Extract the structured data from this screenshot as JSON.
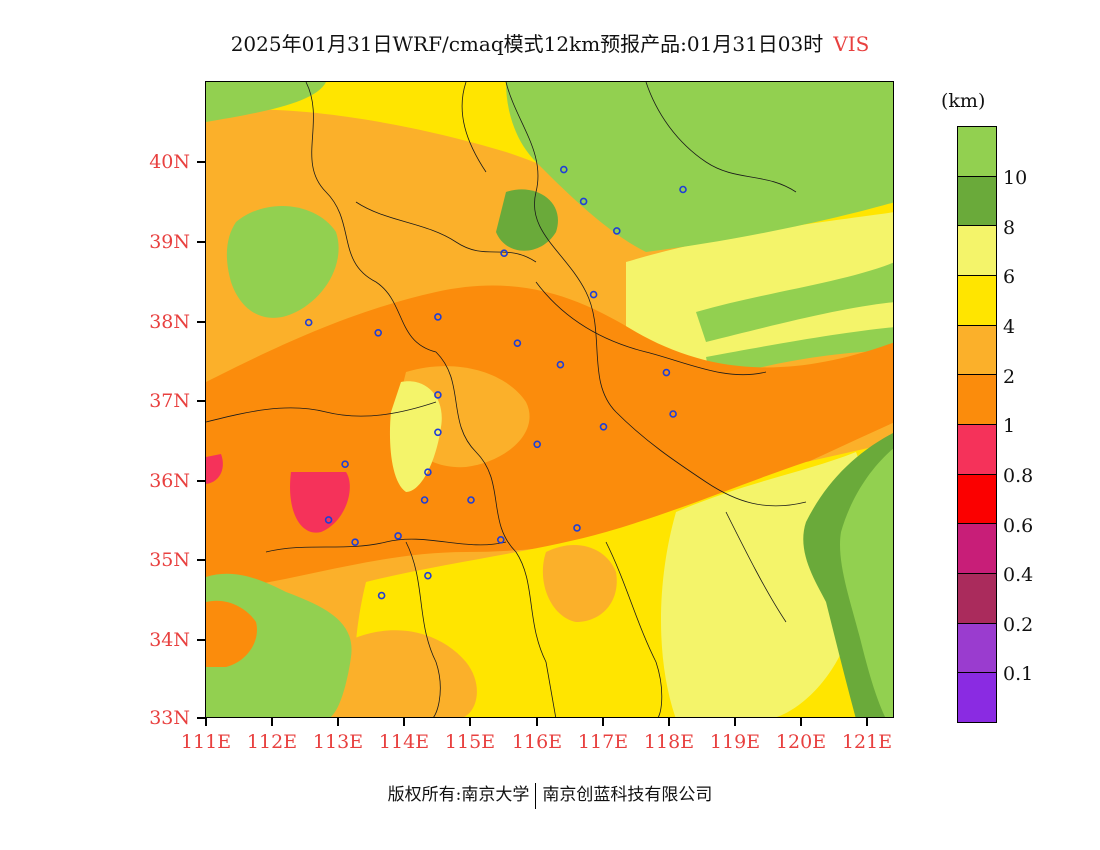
{
  "title": {
    "main": "2025年01月31日WRF/cmaq模式12km预报产品:01月31日03时",
    "variable": "VIS"
  },
  "axes": {
    "y_ticks": [
      "40N",
      "39N",
      "38N",
      "37N",
      "36N",
      "35N",
      "34N",
      "33N"
    ],
    "x_ticks": [
      "111E",
      "112E",
      "113E",
      "114E",
      "115E",
      "116E",
      "117E",
      "118E",
      "119E",
      "120E",
      "121E"
    ]
  },
  "legend": {
    "unit": "(km)",
    "labels": [
      "10",
      "8",
      "6",
      "4",
      "2",
      "1",
      "0.8",
      "0.6",
      "0.4",
      "0.2",
      "0.1"
    ],
    "colors": [
      "#92d050",
      "#6aaa3a",
      "#f4f46a",
      "#ffe500",
      "#fbb02a",
      "#fb8c0c",
      "#f5325a",
      "#fb0000",
      "#c81e78",
      "#aa2b5c",
      "#9a3ccf",
      "#8a2be2"
    ]
  },
  "footer": {
    "left": "版权所有:南京大学",
    "right": "南京创蓝科技有限公司"
  },
  "map": {
    "lon_range": [
      111,
      121.4
    ],
    "lat_range": [
      33,
      41
    ],
    "stations": [
      [
        116.4,
        39.9
      ],
      [
        116.7,
        39.5
      ],
      [
        118.2,
        39.65
      ],
      [
        117.2,
        39.13
      ],
      [
        115.5,
        38.85
      ],
      [
        116.85,
        38.33
      ],
      [
        114.5,
        38.05
      ],
      [
        113.6,
        37.85
      ],
      [
        112.55,
        37.98
      ],
      [
        115.7,
        37.72
      ],
      [
        116.35,
        37.45
      ],
      [
        117.95,
        37.35
      ],
      [
        118.05,
        36.83
      ],
      [
        117.0,
        36.67
      ],
      [
        114.5,
        37.07
      ],
      [
        114.5,
        36.6
      ],
      [
        116.0,
        36.45
      ],
      [
        113.1,
        36.2
      ],
      [
        114.35,
        36.1
      ],
      [
        112.85,
        35.5
      ],
      [
        115.0,
        35.75
      ],
      [
        114.3,
        35.75
      ],
      [
        113.9,
        35.3
      ],
      [
        113.25,
        35.22
      ],
      [
        115.45,
        35.25
      ],
      [
        116.6,
        35.4
      ],
      [
        114.35,
        34.8
      ],
      [
        113.65,
        34.55
      ]
    ]
  }
}
